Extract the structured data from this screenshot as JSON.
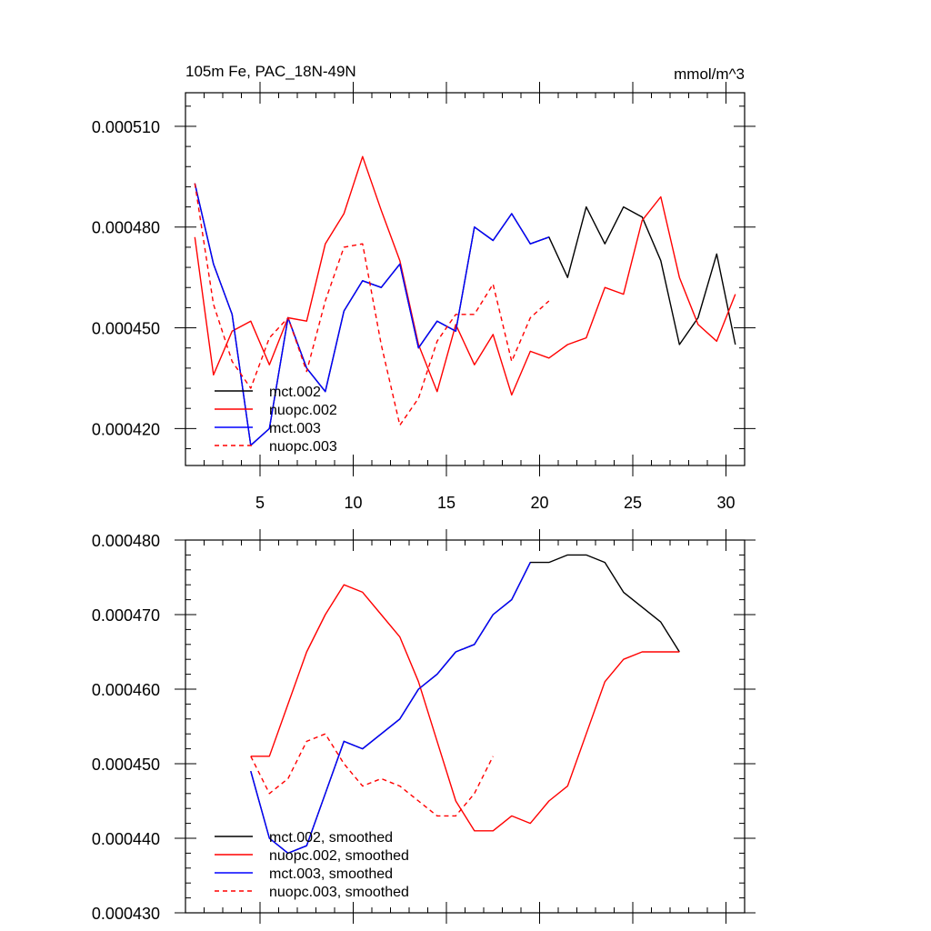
{
  "chart_data": [
    {
      "type": "line",
      "title": "105m Fe, PAC_18N-49N",
      "units": "mmol/m^3",
      "xlim": [
        1,
        31
      ],
      "ylim": [
        0.000409,
        0.00052
      ],
      "xticks": [
        5,
        10,
        15,
        20,
        25,
        30
      ],
      "xtick_labels": [
        "5",
        "10",
        "15",
        "20",
        "25",
        "30"
      ],
      "yticks": [
        0.00042,
        0.00045,
        0.00048,
        0.00051
      ],
      "ytick_labels": [
        "0.000420",
        "0.000450",
        "0.000480",
        "0.000510"
      ],
      "grid": false,
      "legend_position": "bottom-left",
      "series": [
        {
          "name": "mct.002",
          "color": "#000000",
          "dash": "solid",
          "x": [
            1.5,
            2.5,
            3.5,
            4.5,
            5.5,
            6.5,
            7.5,
            8.5,
            9.5,
            10.5,
            11.5,
            12.5,
            13.5,
            14.5,
            15.5,
            16.5,
            17.5,
            18.5,
            19.5,
            20.5,
            21.5,
            22.5,
            23.5,
            24.5,
            25.5,
            26.5,
            27.5,
            28.5,
            29.5,
            30.5
          ],
          "y": [
            0.000493,
            0.000469,
            0.000454,
            0.000415,
            0.00042,
            0.000453,
            0.000438,
            0.000431,
            0.000455,
            0.000464,
            0.000462,
            0.000469,
            0.000444,
            0.000452,
            0.000449,
            0.00048,
            0.000476,
            0.000484,
            0.000475,
            0.000477,
            0.000465,
            0.000486,
            0.000475,
            0.000486,
            0.000483,
            0.00047,
            0.000445,
            0.000453,
            0.000472,
            0.000445
          ]
        },
        {
          "name": "nuopc.002",
          "color": "#ff0000",
          "dash": "solid",
          "x": [
            1.5,
            2.5,
            3.5,
            4.5,
            5.5,
            6.5,
            7.5,
            8.5,
            9.5,
            10.5,
            11.5,
            12.5,
            13.5,
            14.5,
            15.5,
            16.5,
            17.5,
            18.5,
            19.5,
            20.5,
            21.5,
            22.5,
            23.5,
            24.5,
            25.5,
            26.5,
            27.5,
            28.5,
            29.5,
            30.5
          ],
          "y": [
            0.000477,
            0.000436,
            0.000449,
            0.000452,
            0.000439,
            0.000453,
            0.000452,
            0.000475,
            0.000484,
            0.000501,
            0.000485,
            0.00047,
            0.000445,
            0.000431,
            0.000451,
            0.000439,
            0.000448,
            0.00043,
            0.000443,
            0.000441,
            0.000445,
            0.000447,
            0.000462,
            0.00046,
            0.000482,
            0.000489,
            0.000465,
            0.000451,
            0.000446,
            0.00046
          ]
        },
        {
          "name": "mct.003",
          "color": "#0000ff",
          "dash": "solid",
          "x": [
            1.5,
            2.5,
            3.5,
            4.5,
            5.5,
            6.5,
            7.5,
            8.5,
            9.5,
            10.5,
            11.5,
            12.5,
            13.5,
            14.5,
            15.5,
            16.5,
            17.5,
            18.5,
            19.5,
            20.5
          ],
          "y": [
            0.000493,
            0.000469,
            0.000454,
            0.000415,
            0.00042,
            0.000453,
            0.000438,
            0.000431,
            0.000455,
            0.000464,
            0.000462,
            0.000469,
            0.000444,
            0.000452,
            0.000449,
            0.00048,
            0.000476,
            0.000484,
            0.000475,
            0.000477
          ]
        },
        {
          "name": "nuopc.003",
          "color": "#ff0000",
          "dash": "dashed",
          "x": [
            1.5,
            2.5,
            3.5,
            4.5,
            5.5,
            6.5,
            7.5,
            8.5,
            9.5,
            10.5,
            11.5,
            12.5,
            13.5,
            14.5,
            15.5,
            16.5,
            17.5,
            18.5,
            19.5,
            20.5
          ],
          "y": [
            0.000493,
            0.000457,
            0.00044,
            0.000432,
            0.000447,
            0.000453,
            0.000437,
            0.000458,
            0.000474,
            0.000475,
            0.000445,
            0.000421,
            0.000429,
            0.000446,
            0.000454,
            0.000454,
            0.000463,
            0.00044,
            0.000453,
            0.000458
          ]
        }
      ]
    },
    {
      "type": "line",
      "xlim": [
        1,
        31
      ],
      "ylim": [
        0.00043,
        0.00048
      ],
      "xticks": [
        5,
        10,
        15,
        20,
        25,
        30
      ],
      "yticks": [
        0.00043,
        0.00044,
        0.00045,
        0.00046,
        0.00047,
        0.00048
      ],
      "ytick_labels": [
        "0.000430",
        "0.000440",
        "0.000450",
        "0.000460",
        "0.000470",
        "0.000480"
      ],
      "grid": false,
      "legend_position": "bottom-left",
      "series": [
        {
          "name": "mct.002, smoothed",
          "color": "#000000",
          "dash": "solid",
          "x": [
            4.5,
            5.5,
            6.5,
            7.5,
            8.5,
            9.5,
            10.5,
            11.5,
            12.5,
            13.5,
            14.5,
            15.5,
            16.5,
            17.5,
            18.5,
            19.5,
            20.5,
            21.5,
            22.5,
            23.5,
            24.5,
            25.5,
            26.5,
            27.5
          ],
          "y": [
            0.000449,
            0.00044,
            0.000438,
            0.000439,
            0.000446,
            0.000453,
            0.000452,
            0.000454,
            0.000456,
            0.00046,
            0.000462,
            0.000465,
            0.000466,
            0.00047,
            0.000472,
            0.000477,
            0.000477,
            0.000478,
            0.000478,
            0.000477,
            0.000473,
            0.000471,
            0.000469,
            0.000465
          ]
        },
        {
          "name": "nuopc.002, smoothed",
          "color": "#ff0000",
          "dash": "solid",
          "x": [
            4.5,
            5.5,
            6.5,
            7.5,
            8.5,
            9.5,
            10.5,
            11.5,
            12.5,
            13.5,
            14.5,
            15.5,
            16.5,
            17.5,
            18.5,
            19.5,
            20.5,
            21.5,
            22.5,
            23.5,
            24.5,
            25.5,
            26.5,
            27.5
          ],
          "y": [
            0.000451,
            0.000451,
            0.000458,
            0.000465,
            0.00047,
            0.000474,
            0.000473,
            0.00047,
            0.000467,
            0.000461,
            0.000453,
            0.000445,
            0.000441,
            0.000441,
            0.000443,
            0.000442,
            0.000445,
            0.000447,
            0.000454,
            0.000461,
            0.000464,
            0.000465,
            0.000465,
            0.000465
          ]
        },
        {
          "name": "mct.003, smoothed",
          "color": "#0000ff",
          "dash": "solid",
          "x": [
            4.5,
            5.5,
            6.5,
            7.5,
            8.5,
            9.5,
            10.5,
            11.5,
            12.5,
            13.5,
            14.5,
            15.5,
            16.5,
            17.5,
            18.5,
            19.5
          ],
          "y": [
            0.000449,
            0.00044,
            0.000438,
            0.000439,
            0.000446,
            0.000453,
            0.000452,
            0.000454,
            0.000456,
            0.00046,
            0.000462,
            0.000465,
            0.000466,
            0.00047,
            0.000472,
            0.000477
          ]
        },
        {
          "name": "nuopc.003, smoothed",
          "color": "#ff0000",
          "dash": "dashed",
          "x": [
            4.5,
            5.5,
            6.5,
            7.5,
            8.5,
            9.5,
            10.5,
            11.5,
            12.5,
            13.5,
            14.5,
            15.5,
            16.5,
            17.5
          ],
          "y": [
            0.000451,
            0.000446,
            0.000448,
            0.000453,
            0.000454,
            0.00045,
            0.000447,
            0.000448,
            0.000447,
            0.000445,
            0.000443,
            0.000443,
            0.000446,
            0.000451
          ]
        }
      ]
    }
  ]
}
